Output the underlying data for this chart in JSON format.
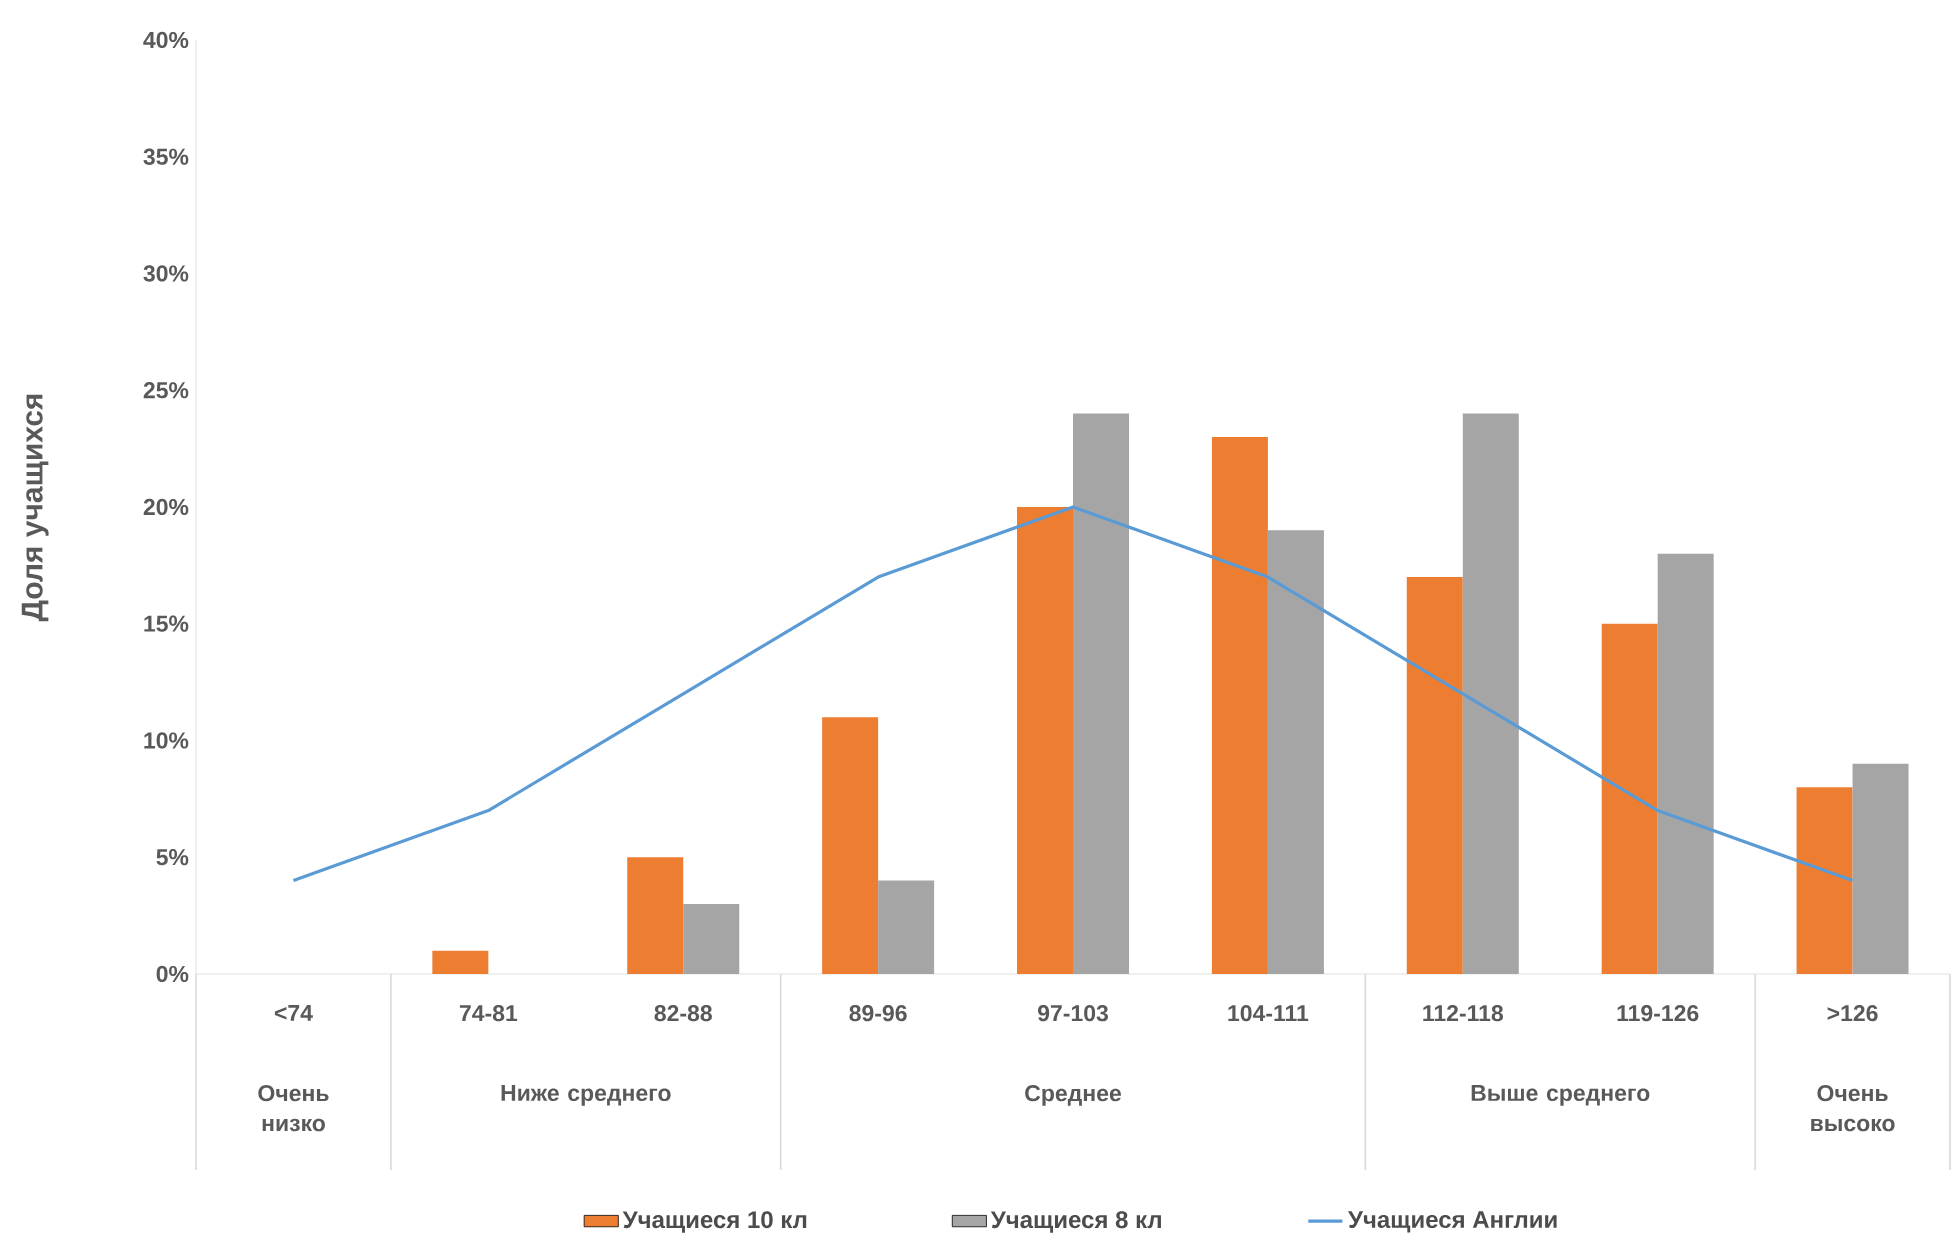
{
  "chart_data": {
    "type": "bar",
    "ylabel": "Доля учащихся",
    "categories": [
      "<74",
      "74-81",
      "82-88",
      "89-96",
      "97-103",
      "104-111",
      "112-118",
      "119-126",
      ">126"
    ],
    "series": [
      {
        "name": "Учащиеся 10 кл",
        "color": "#ed7d31",
        "values": [
          0,
          1,
          5,
          11,
          20,
          23,
          17,
          15,
          8
        ]
      },
      {
        "name": "Учащиеся 8 кл",
        "color": "#a5a5a5",
        "values": [
          0,
          0,
          3,
          4,
          24,
          19,
          24,
          18,
          9
        ]
      },
      {
        "name": "Учащиеся Англии",
        "color": "#5b9bd5",
        "type": "line",
        "values": [
          4,
          7,
          12,
          17,
          20,
          17,
          12,
          7,
          4
        ]
      }
    ],
    "ylim": [
      0,
      40
    ],
    "yticks": [
      {
        "value": 0,
        "label": "0%"
      },
      {
        "value": 5,
        "label": "5%"
      },
      {
        "value": 10,
        "label": "10%"
      },
      {
        "value": 15,
        "label": "15%"
      },
      {
        "value": 20,
        "label": "20%"
      },
      {
        "value": 25,
        "label": "25%"
      },
      {
        "value": 30,
        "label": "30%"
      },
      {
        "value": 35,
        "label": "35%"
      },
      {
        "value": 40,
        "label": "40%"
      }
    ],
    "annotations": [
      "Очень низко",
      "Ниже среднего",
      "Среднее",
      "Выше среднего",
      "Очень высоко"
    ],
    "legend": "bottom"
  }
}
